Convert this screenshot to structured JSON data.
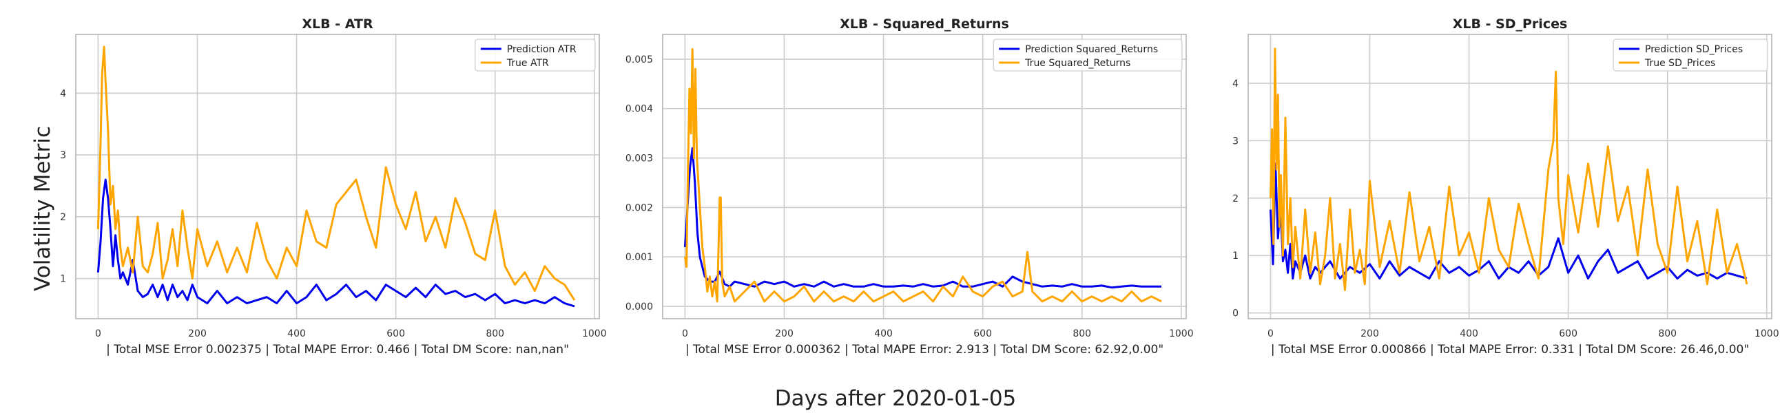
{
  "figure": {
    "ylabel": "Volatility Metric",
    "xlabel": "Days after 2020-01-05"
  },
  "colors": {
    "prediction": "#0000ee",
    "true": "#ffa500",
    "grid": "#cccccc",
    "frame": "#bbbbbb"
  },
  "chart_data": [
    {
      "type": "line",
      "title": "XLB - ATR",
      "xlabel": "| Total MSE Error 0.002375 | Total MAPE Error: 0.466 | Total DM Score: nan,nan\"",
      "ylabel": "",
      "xlim": [
        -45,
        1010
      ],
      "ylim": [
        0.35,
        4.95
      ],
      "xticks": [
        0,
        200,
        400,
        600,
        800,
        1000
      ],
      "yticks": [
        1,
        2,
        3,
        4
      ],
      "ytick_labels": [
        "1",
        "2",
        "3",
        "4"
      ],
      "legend_position": "top-right",
      "grid": true,
      "series": [
        {
          "name": "Prediction ATR",
          "color": "#0000ee",
          "x": [
            0,
            5,
            10,
            15,
            20,
            25,
            30,
            35,
            40,
            45,
            50,
            60,
            70,
            80,
            90,
            100,
            110,
            120,
            130,
            140,
            150,
            160,
            170,
            180,
            190,
            200,
            220,
            240,
            260,
            280,
            300,
            320,
            340,
            360,
            380,
            400,
            420,
            440,
            460,
            480,
            500,
            520,
            540,
            560,
            580,
            600,
            620,
            640,
            660,
            680,
            700,
            720,
            740,
            760,
            780,
            800,
            820,
            840,
            860,
            880,
            900,
            920,
            940,
            960
          ],
          "y": [
            1.1,
            1.6,
            2.3,
            2.6,
            2.3,
            1.8,
            1.2,
            1.7,
            1.3,
            1.0,
            1.1,
            0.9,
            1.3,
            0.8,
            0.7,
            0.75,
            0.9,
            0.7,
            0.9,
            0.65,
            0.9,
            0.7,
            0.8,
            0.65,
            0.9,
            0.7,
            0.6,
            0.8,
            0.6,
            0.7,
            0.6,
            0.65,
            0.7,
            0.6,
            0.8,
            0.6,
            0.7,
            0.9,
            0.65,
            0.75,
            0.9,
            0.7,
            0.8,
            0.65,
            0.9,
            0.8,
            0.7,
            0.85,
            0.7,
            0.9,
            0.75,
            0.8,
            0.7,
            0.75,
            0.65,
            0.75,
            0.6,
            0.65,
            0.6,
            0.65,
            0.6,
            0.7,
            0.6,
            0.55
          ]
        },
        {
          "name": "True ATR",
          "color": "#ffa500",
          "x": [
            0,
            5,
            8,
            12,
            15,
            20,
            25,
            30,
            35,
            40,
            45,
            50,
            60,
            70,
            80,
            90,
            100,
            110,
            120,
            130,
            140,
            150,
            160,
            170,
            180,
            190,
            200,
            220,
            240,
            260,
            280,
            300,
            320,
            340,
            360,
            380,
            400,
            420,
            440,
            460,
            480,
            500,
            520,
            540,
            560,
            580,
            600,
            620,
            640,
            660,
            680,
            700,
            720,
            740,
            760,
            780,
            800,
            820,
            840,
            860,
            880,
            900,
            920,
            940,
            960
          ],
          "y": [
            1.8,
            3.2,
            4.3,
            4.75,
            4.2,
            3.4,
            2.2,
            2.5,
            1.8,
            2.1,
            1.5,
            1.2,
            1.5,
            1.1,
            2.0,
            1.2,
            1.1,
            1.4,
            1.9,
            1.0,
            1.3,
            1.8,
            1.2,
            2.1,
            1.5,
            1.0,
            1.8,
            1.2,
            1.6,
            1.1,
            1.5,
            1.1,
            1.9,
            1.3,
            1.0,
            1.5,
            1.2,
            2.1,
            1.6,
            1.5,
            2.2,
            2.4,
            2.6,
            2.0,
            1.5,
            2.8,
            2.2,
            1.8,
            2.4,
            1.6,
            2.0,
            1.5,
            2.3,
            1.9,
            1.4,
            1.3,
            2.1,
            1.2,
            0.9,
            1.1,
            0.8,
            1.2,
            1.0,
            0.9,
            0.65
          ]
        }
      ]
    },
    {
      "type": "line",
      "title": "XLB - Squared_Returns",
      "xlabel": "| Total MSE Error 0.000362 | Total MAPE Error: 2.913 | Total DM Score: 62.92,0.00\"",
      "ylabel": "",
      "xlim": [
        -45,
        1010
      ],
      "ylim": [
        -0.00025,
        0.0055
      ],
      "xticks": [
        0,
        200,
        400,
        600,
        800,
        1000
      ],
      "yticks": [
        0,
        0.001,
        0.002,
        0.003,
        0.004,
        0.005
      ],
      "ytick_labels": [
        "0.000",
        "0.001",
        "0.002",
        "0.003",
        "0.004",
        "0.005"
      ],
      "legend_position": "top-right",
      "grid": true,
      "series": [
        {
          "name": "Prediction Squared_Returns",
          "color": "#0000ee",
          "x": [
            0,
            5,
            10,
            15,
            20,
            25,
            30,
            35,
            40,
            50,
            60,
            70,
            80,
            90,
            100,
            120,
            140,
            160,
            180,
            200,
            220,
            240,
            260,
            280,
            300,
            320,
            340,
            360,
            380,
            400,
            420,
            440,
            460,
            480,
            500,
            520,
            540,
            560,
            580,
            600,
            620,
            640,
            660,
            680,
            700,
            720,
            740,
            760,
            780,
            800,
            820,
            840,
            860,
            880,
            900,
            920,
            940,
            960
          ],
          "y": [
            0.0012,
            0.002,
            0.0028,
            0.0032,
            0.0025,
            0.0015,
            0.001,
            0.0008,
            0.0006,
            0.0005,
            0.0005,
            0.0007,
            0.00045,
            0.0004,
            0.0005,
            0.00045,
            0.0004,
            0.0005,
            0.00045,
            0.0005,
            0.0004,
            0.00045,
            0.0004,
            0.0005,
            0.0004,
            0.00045,
            0.0004,
            0.0004,
            0.00045,
            0.0004,
            0.0004,
            0.00042,
            0.0004,
            0.00045,
            0.0004,
            0.00042,
            0.0005,
            0.0004,
            0.0004,
            0.00045,
            0.0005,
            0.0004,
            0.0006,
            0.0005,
            0.00045,
            0.0004,
            0.00042,
            0.0004,
            0.00045,
            0.0004,
            0.0004,
            0.00042,
            0.00038,
            0.0004,
            0.00042,
            0.0004,
            0.0004,
            0.0004
          ]
        },
        {
          "name": "True Squared_Returns",
          "color": "#ffa500",
          "x": [
            0,
            3,
            6,
            9,
            12,
            15,
            18,
            21,
            24,
            27,
            30,
            35,
            40,
            45,
            50,
            55,
            60,
            65,
            70,
            72,
            75,
            80,
            90,
            100,
            120,
            140,
            160,
            180,
            200,
            220,
            240,
            260,
            280,
            300,
            320,
            340,
            360,
            380,
            400,
            420,
            440,
            460,
            480,
            500,
            520,
            540,
            560,
            580,
            600,
            620,
            640,
            660,
            680,
            690,
            700,
            720,
            740,
            760,
            780,
            800,
            820,
            840,
            860,
            880,
            900,
            920,
            940,
            960
          ],
          "y": [
            0.001,
            0.0008,
            0.0028,
            0.0044,
            0.0035,
            0.0052,
            0.003,
            0.0048,
            0.003,
            0.0025,
            0.002,
            0.0012,
            0.0008,
            0.0003,
            0.0006,
            0.0002,
            0.0005,
            0.0001,
            0.0022,
            0.0022,
            0.0005,
            0.0002,
            0.0004,
            0.0001,
            0.0003,
            0.0005,
            0.0001,
            0.0003,
            0.0001,
            0.0002,
            0.0004,
            0.0001,
            0.0003,
            0.0001,
            0.0002,
            0.0001,
            0.0003,
            0.0001,
            0.0002,
            0.0003,
            0.0001,
            0.0002,
            0.0003,
            0.0001,
            0.0004,
            0.0002,
            0.0006,
            0.0003,
            0.0002,
            0.0004,
            0.0005,
            0.0002,
            0.0003,
            0.0011,
            0.0003,
            0.0001,
            0.0002,
            0.0001,
            0.0003,
            0.0001,
            0.0002,
            0.0001,
            0.0002,
            0.0001,
            0.0003,
            0.0001,
            0.0002,
            0.0001
          ]
        }
      ]
    },
    {
      "type": "line",
      "title": "XLB - SD_Prices",
      "xlabel": "| Total MSE Error 0.000866 | Total MAPE Error: 0.331 | Total DM Score: 26.46,0.00\"",
      "ylabel": "",
      "xlim": [
        -45,
        1010
      ],
      "ylim": [
        -0.1,
        4.85
      ],
      "xticks": [
        0,
        200,
        400,
        600,
        800,
        1000
      ],
      "yticks": [
        0,
        1,
        2,
        3,
        4
      ],
      "ytick_labels": [
        "0",
        "1",
        "2",
        "3",
        "4"
      ],
      "legend_position": "top-right",
      "grid": true,
      "series": [
        {
          "name": "Prediction SD_Prices",
          "color": "#0000ee",
          "x": [
            0,
            5,
            10,
            15,
            20,
            25,
            30,
            35,
            40,
            45,
            50,
            60,
            70,
            80,
            90,
            100,
            120,
            140,
            160,
            180,
            200,
            220,
            240,
            260,
            280,
            300,
            320,
            340,
            360,
            380,
            400,
            420,
            440,
            460,
            480,
            500,
            520,
            540,
            560,
            580,
            600,
            620,
            640,
            660,
            680,
            700,
            720,
            740,
            760,
            780,
            800,
            820,
            840,
            860,
            880,
            900,
            920,
            940,
            960
          ],
          "y": [
            1.8,
            0.85,
            2.6,
            1.3,
            1.9,
            0.9,
            1.1,
            0.7,
            1.2,
            0.6,
            0.9,
            0.7,
            1.0,
            0.6,
            0.8,
            0.7,
            0.9,
            0.6,
            0.8,
            0.7,
            0.85,
            0.6,
            0.9,
            0.65,
            0.8,
            0.7,
            0.6,
            0.9,
            0.7,
            0.8,
            0.65,
            0.75,
            0.9,
            0.6,
            0.8,
            0.7,
            0.9,
            0.65,
            0.8,
            1.3,
            0.7,
            1.0,
            0.6,
            0.9,
            1.1,
            0.7,
            0.8,
            0.9,
            0.6,
            0.7,
            0.8,
            0.6,
            0.75,
            0.65,
            0.7,
            0.6,
            0.7,
            0.65,
            0.6
          ]
        },
        {
          "name": "True SD_Prices",
          "color": "#ffa500",
          "x": [
            0,
            3,
            6,
            9,
            12,
            15,
            18,
            21,
            25,
            30,
            35,
            40,
            45,
            50,
            60,
            70,
            80,
            90,
            100,
            110,
            120,
            130,
            140,
            150,
            160,
            170,
            180,
            190,
            200,
            220,
            240,
            260,
            280,
            300,
            320,
            340,
            360,
            380,
            400,
            420,
            440,
            460,
            480,
            500,
            520,
            540,
            560,
            570,
            575,
            580,
            590,
            600,
            620,
            640,
            660,
            680,
            700,
            720,
            740,
            760,
            780,
            800,
            820,
            840,
            860,
            880,
            900,
            920,
            940,
            960
          ],
          "y": [
            2.0,
            3.2,
            1.2,
            4.6,
            2.5,
            3.8,
            1.5,
            2.4,
            1.0,
            3.4,
            1.2,
            2.0,
            0.8,
            1.5,
            0.6,
            1.8,
            0.7,
            1.4,
            0.5,
            1.0,
            2.0,
            0.6,
            1.2,
            0.4,
            1.8,
            0.7,
            1.1,
            0.5,
            2.3,
            0.8,
            1.6,
            0.7,
            2.1,
            0.9,
            1.5,
            0.6,
            2.2,
            1.0,
            1.4,
            0.7,
            2.0,
            1.1,
            0.8,
            1.9,
            1.2,
            0.6,
            2.5,
            3.0,
            4.2,
            2.0,
            1.2,
            2.4,
            1.4,
            2.6,
            1.5,
            2.9,
            1.6,
            2.2,
            1.0,
            2.5,
            1.2,
            0.7,
            2.2,
            0.9,
            1.6,
            0.5,
            1.8,
            0.7,
            1.2,
            0.5
          ]
        }
      ]
    }
  ]
}
